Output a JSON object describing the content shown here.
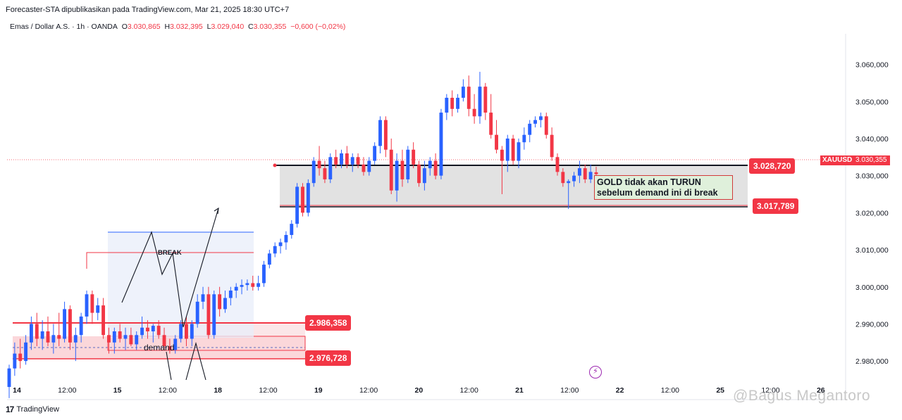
{
  "header": {
    "published": "Forecaster-STA dipublikasikan pada TradingView.com, Mar 21, 2025 18:30 UTC+7"
  },
  "symbol_bar": {
    "title": "Emas / Dollar A.S. · 1h · OANDA",
    "o_label": "O",
    "o_value": "3.030,865",
    "h_label": "H",
    "h_value": "3.032,395",
    "l_label": "L",
    "l_value": "3.029,040",
    "c_label": "C",
    "c_value": "3.030,355",
    "change": "−0,600 (−0,02%)"
  },
  "current_price": {
    "symbol": "XAUUSD",
    "value": "3.030,355"
  },
  "levels": {
    "upper_demand_top": "3.028,720",
    "upper_demand_bottom": "3.017,789",
    "lower_demand_top": "2.986,358",
    "lower_demand_bottom": "2.976,728"
  },
  "annotations": {
    "note_line1": "GOLD tidak akan TURUN",
    "note_line2": "sebelum demand ini di break",
    "break_label": "BREAK",
    "demand_label": "demand"
  },
  "branding": {
    "tradingview": "TradingView",
    "watermark": "@Bagus Megantoro"
  },
  "colors": {
    "up": "#2962ff",
    "down": "#f23645",
    "level_red": "#f23645"
  },
  "chart_data": {
    "type": "candlestick",
    "title": "Emas / Dollar A.S. · 1h · OANDA",
    "ylim": [
      2970000,
      3066000
    ],
    "y_ticks": [
      {
        "value": 2980000,
        "label": "2.980,000"
      },
      {
        "value": 2990000,
        "label": "2.990,000"
      },
      {
        "value": 3000000,
        "label": "3.000,000"
      },
      {
        "value": 3010000,
        "label": "3.010,000"
      },
      {
        "value": 3020000,
        "label": "3.020,000"
      },
      {
        "value": 3030000,
        "label": "3.030,000"
      },
      {
        "value": 3040000,
        "label": "3.040,000"
      },
      {
        "value": 3050000,
        "label": "3.050,000"
      },
      {
        "value": 3060000,
        "label": "3.060,000"
      }
    ],
    "x_ticks": [
      "14",
      "12:00",
      "15",
      "12:00",
      "18",
      "12:00",
      "19",
      "12:00",
      "20",
      "12:00",
      "21",
      "12:00",
      "22",
      "12:00",
      "25",
      "12:00",
      "26"
    ],
    "series": [
      {
        "o": 2973.0,
        "h": 2979.0,
        "l": 2970.0,
        "c": 2978.0
      },
      {
        "o": 2978.0,
        "h": 2985.0,
        "l": 2976.0,
        "c": 2982.0
      },
      {
        "o": 2982.0,
        "h": 2986.0,
        "l": 2978.0,
        "c": 2980.0
      },
      {
        "o": 2980.0,
        "h": 2987.0,
        "l": 2979.0,
        "c": 2985.0
      },
      {
        "o": 2985.0,
        "h": 2992.0,
        "l": 2983.0,
        "c": 2990.0
      },
      {
        "o": 2990.0,
        "h": 2993.0,
        "l": 2984.0,
        "c": 2986.0
      },
      {
        "o": 2986.0,
        "h": 2991.0,
        "l": 2983.0,
        "c": 2988.0
      },
      {
        "o": 2988.0,
        "h": 2992.0,
        "l": 2984.0,
        "c": 2985.0
      },
      {
        "o": 2985.0,
        "h": 2990.0,
        "l": 2982.0,
        "c": 2987.0
      },
      {
        "o": 2987.0,
        "h": 2993.0,
        "l": 2984.0,
        "c": 2986.0
      },
      {
        "o": 2986.0,
        "h": 2996.0,
        "l": 2985.0,
        "c": 2994.0
      },
      {
        "o": 2994.0,
        "h": 2995.0,
        "l": 2983.0,
        "c": 2985.0
      },
      {
        "o": 2985.0,
        "h": 2989.0,
        "l": 2980.0,
        "c": 2987.0
      },
      {
        "o": 2987.0,
        "h": 2993.0,
        "l": 2985.0,
        "c": 2992.0
      },
      {
        "o": 2992.0,
        "h": 2999.0,
        "l": 2990.0,
        "c": 2998.0
      },
      {
        "o": 2998.0,
        "h": 2999.0,
        "l": 2990.0,
        "c": 2993.0
      },
      {
        "o": 2993.0,
        "h": 2997.0,
        "l": 2991.0,
        "c": 2995.0
      },
      {
        "o": 2995.0,
        "h": 2997.0,
        "l": 2986.0,
        "c": 2987.0
      },
      {
        "o": 2987.0,
        "h": 2989.0,
        "l": 2982.0,
        "c": 2985.0
      },
      {
        "o": 2985.0,
        "h": 2989.0,
        "l": 2982.0,
        "c": 2988.0
      },
      {
        "o": 2988.0,
        "h": 2990.0,
        "l": 2985.0,
        "c": 2986.0
      },
      {
        "o": 2986.0,
        "h": 2989.0,
        "l": 2983.0,
        "c": 2987.0
      },
      {
        "o": 2987.0,
        "h": 2989.0,
        "l": 2984.0,
        "c": 2984.5
      },
      {
        "o": 2984.5,
        "h": 2988.0,
        "l": 2983.0,
        "c": 2987.0
      },
      {
        "o": 2987.0,
        "h": 2992.0,
        "l": 2986.0,
        "c": 2989.0
      },
      {
        "o": 2989.0,
        "h": 2991.0,
        "l": 2986.0,
        "c": 2988.0
      },
      {
        "o": 2988.0,
        "h": 2990.0,
        "l": 2985.0,
        "c": 2989.5
      },
      {
        "o": 2989.5,
        "h": 2991.0,
        "l": 2986.0,
        "c": 2987.0
      },
      {
        "o": 2987.0,
        "h": 2989.0,
        "l": 2983.0,
        "c": 2984.0
      },
      {
        "o": 2984.0,
        "h": 2986.0,
        "l": 2982.0,
        "c": 2983.0
      },
      {
        "o": 2983.0,
        "h": 2987.0,
        "l": 2982.0,
        "c": 2986.0
      },
      {
        "o": 2986.0,
        "h": 2991.0,
        "l": 2985.0,
        "c": 2990.0
      },
      {
        "o": 2990.0,
        "h": 2992.0,
        "l": 2984.0,
        "c": 2986.0
      },
      {
        "o": 2986.0,
        "h": 2991.0,
        "l": 2984.0,
        "c": 2990.0
      },
      {
        "o": 2990.0,
        "h": 2998.0,
        "l": 2989.0,
        "c": 2996.0
      },
      {
        "o": 2996.0,
        "h": 3000.0,
        "l": 2994.0,
        "c": 2998.0
      },
      {
        "o": 2998.0,
        "h": 3000.0,
        "l": 2986.0,
        "c": 2987.0
      },
      {
        "o": 2987.0,
        "h": 2999.0,
        "l": 2986.0,
        "c": 2998.0
      },
      {
        "o": 2998.0,
        "h": 3000.0,
        "l": 2992.0,
        "c": 2994.0
      },
      {
        "o": 2994.0,
        "h": 2999.0,
        "l": 2993.0,
        "c": 2997.0
      },
      {
        "o": 2997.0,
        "h": 3000.0,
        "l": 2995.0,
        "c": 2999.0
      },
      {
        "o": 2999.0,
        "h": 3001.0,
        "l": 2997.0,
        "c": 3000.0
      },
      {
        "o": 3000.0,
        "h": 3002.0,
        "l": 2998.0,
        "c": 3000.5
      },
      {
        "o": 3000.5,
        "h": 3002.0,
        "l": 2999.0,
        "c": 3001.0
      },
      {
        "o": 3001.0,
        "h": 3003.0,
        "l": 2999.0,
        "c": 3000.0
      },
      {
        "o": 3000.0,
        "h": 3003.0,
        "l": 2999.0,
        "c": 3001.0
      },
      {
        "o": 3001.0,
        "h": 3007.0,
        "l": 3000.0,
        "c": 3006.0
      },
      {
        "o": 3006.0,
        "h": 3010.0,
        "l": 3005.0,
        "c": 3009.0
      },
      {
        "o": 3009.0,
        "h": 3012.0,
        "l": 3008.0,
        "c": 3011.0
      },
      {
        "o": 3011.0,
        "h": 3013.0,
        "l": 3009.0,
        "c": 3012.0
      },
      {
        "o": 3012.0,
        "h": 3015.0,
        "l": 3010.0,
        "c": 3014.0
      },
      {
        "o": 3014.0,
        "h": 3018.0,
        "l": 3013.0,
        "c": 3017.0
      },
      {
        "o": 3017.0,
        "h": 3028.0,
        "l": 3016.0,
        "c": 3027.0
      },
      {
        "o": 3027.0,
        "h": 3028.0,
        "l": 3019.0,
        "c": 3020.0
      },
      {
        "o": 3020.0,
        "h": 3029.0,
        "l": 3019.0,
        "c": 3028.0
      },
      {
        "o": 3028.0,
        "h": 3035.0,
        "l": 3027.0,
        "c": 3034.0
      },
      {
        "o": 3034.0,
        "h": 3038.0,
        "l": 3030.0,
        "c": 3032.0
      },
      {
        "o": 3032.0,
        "h": 3034.0,
        "l": 3028.0,
        "c": 3029.0
      },
      {
        "o": 3029.0,
        "h": 3036.0,
        "l": 3028.0,
        "c": 3035.0
      },
      {
        "o": 3035.0,
        "h": 3037.0,
        "l": 3032.0,
        "c": 3033.0
      },
      {
        "o": 3033.0,
        "h": 3037.0,
        "l": 3032.0,
        "c": 3036.0
      },
      {
        "o": 3036.0,
        "h": 3038.0,
        "l": 3032.0,
        "c": 3033.0
      },
      {
        "o": 3033.0,
        "h": 3036.0,
        "l": 3031.0,
        "c": 3035.0
      },
      {
        "o": 3035.0,
        "h": 3036.0,
        "l": 3032.0,
        "c": 3033.0
      },
      {
        "o": 3033.0,
        "h": 3035.0,
        "l": 3030.0,
        "c": 3031.0
      },
      {
        "o": 3031.0,
        "h": 3035.0,
        "l": 3030.0,
        "c": 3034.0
      },
      {
        "o": 3034.0,
        "h": 3039.0,
        "l": 3033.0,
        "c": 3038.0
      },
      {
        "o": 3038.0,
        "h": 3046.0,
        "l": 3036.0,
        "c": 3045.0
      },
      {
        "o": 3045.0,
        "h": 3046.0,
        "l": 3035.0,
        "c": 3037.0
      },
      {
        "o": 3037.0,
        "h": 3040.0,
        "l": 3025.0,
        "c": 3026.0
      },
      {
        "o": 3026.0,
        "h": 3036.0,
        "l": 3023.0,
        "c": 3034.0
      },
      {
        "o": 3034.0,
        "h": 3037.0,
        "l": 3027.0,
        "c": 3029.0
      },
      {
        "o": 3029.0,
        "h": 3038.0,
        "l": 3028.0,
        "c": 3037.0
      },
      {
        "o": 3037.0,
        "h": 3039.0,
        "l": 3032.0,
        "c": 3033.0
      },
      {
        "o": 3033.0,
        "h": 3034.0,
        "l": 3027.0,
        "c": 3028.0
      },
      {
        "o": 3028.0,
        "h": 3034.0,
        "l": 3026.0,
        "c": 3032.0
      },
      {
        "o": 3032.0,
        "h": 3035.0,
        "l": 3030.0,
        "c": 3034.0
      },
      {
        "o": 3034.0,
        "h": 3036.0,
        "l": 3029.0,
        "c": 3030.0
      },
      {
        "o": 3030.0,
        "h": 3048.0,
        "l": 3029.0,
        "c": 3047.0
      },
      {
        "o": 3047.0,
        "h": 3052.0,
        "l": 3045.0,
        "c": 3051.0
      },
      {
        "o": 3051.0,
        "h": 3053.0,
        "l": 3046.0,
        "c": 3048.0
      },
      {
        "o": 3048.0,
        "h": 3052.0,
        "l": 3047.0,
        "c": 3051.0
      },
      {
        "o": 3051.0,
        "h": 3056.0,
        "l": 3050.0,
        "c": 3054.0
      },
      {
        "o": 3054.0,
        "h": 3057.0,
        "l": 3046.0,
        "c": 3048.0
      },
      {
        "o": 3048.0,
        "h": 3052.0,
        "l": 3044.0,
        "c": 3046.0
      },
      {
        "o": 3046.0,
        "h": 3058.0,
        "l": 3044.0,
        "c": 3054.0
      },
      {
        "o": 3054.0,
        "h": 3055.0,
        "l": 3045.0,
        "c": 3047.0
      },
      {
        "o": 3047.0,
        "h": 3052.0,
        "l": 3040.0,
        "c": 3041.0
      },
      {
        "o": 3041.0,
        "h": 3045.0,
        "l": 3036.0,
        "c": 3037.0
      },
      {
        "o": 3037.0,
        "h": 3038.0,
        "l": 3025.0,
        "c": 3034.0
      },
      {
        "o": 3034.0,
        "h": 3041.0,
        "l": 3031.0,
        "c": 3040.0
      },
      {
        "o": 3040.0,
        "h": 3041.0,
        "l": 3033.0,
        "c": 3034.0
      },
      {
        "o": 3034.0,
        "h": 3040.0,
        "l": 3032.0,
        "c": 3039.0
      },
      {
        "o": 3039.0,
        "h": 3043.0,
        "l": 3037.0,
        "c": 3041.0
      },
      {
        "o": 3041.0,
        "h": 3045.0,
        "l": 3039.0,
        "c": 3044.0
      },
      {
        "o": 3044.0,
        "h": 3046.0,
        "l": 3043.0,
        "c": 3045.0
      },
      {
        "o": 3045.0,
        "h": 3047.0,
        "l": 3043.0,
        "c": 3046.0
      },
      {
        "o": 3046.0,
        "h": 3047.0,
        "l": 3040.0,
        "c": 3041.0
      },
      {
        "o": 3041.0,
        "h": 3043.0,
        "l": 3034.0,
        "c": 3035.0
      },
      {
        "o": 3035.0,
        "h": 3036.0,
        "l": 3030.0,
        "c": 3031.0
      },
      {
        "o": 3031.0,
        "h": 3032.0,
        "l": 3027.0,
        "c": 3028.0
      },
      {
        "o": 3028.0,
        "h": 3029.0,
        "l": 3021.0,
        "c": 3028.5
      },
      {
        "o": 3028.5,
        "h": 3031.0,
        "l": 3027.0,
        "c": 3030.0
      },
      {
        "o": 3030.0,
        "h": 3034.0,
        "l": 3028.0,
        "c": 3032.0
      },
      {
        "o": 3032.0,
        "h": 3033.0,
        "l": 3028.0,
        "c": 3029.0
      },
      {
        "o": 3029.0,
        "h": 3033.0,
        "l": 3028.0,
        "c": 3031.0
      },
      {
        "o": 3030.9,
        "h": 3032.4,
        "l": 3029.0,
        "c": 3030.4
      }
    ]
  }
}
